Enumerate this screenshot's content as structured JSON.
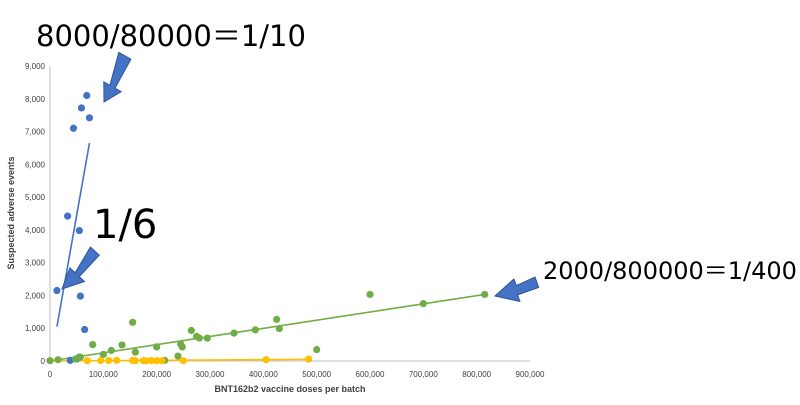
{
  "chart_data": {
    "type": "scatter",
    "xlabel": "BNT162b2 vaccine doses per batch",
    "ylabel": "Suspected adverse events",
    "xlim": [
      0,
      900000
    ],
    "ylim": [
      0,
      9000
    ],
    "x_ticks": [
      "0",
      "100,000",
      "200,000",
      "300,000",
      "400,000",
      "500,000",
      "600,000",
      "700,000",
      "800,000",
      "900,000"
    ],
    "y_ticks": [
      "0",
      "1,000",
      "2,000",
      "3,000",
      "4,000",
      "5,000",
      "6,000",
      "7,000",
      "8,000",
      "9,000"
    ],
    "grid": false,
    "legend": "none",
    "series": [
      {
        "color": "#4472C4",
        "points": [
          [
            13000,
            2150
          ],
          [
            33000,
            4420
          ],
          [
            44000,
            7100
          ],
          [
            55000,
            3980
          ],
          [
            57000,
            1980
          ],
          [
            59000,
            7720
          ],
          [
            65000,
            960
          ],
          [
            69000,
            8100
          ],
          [
            74000,
            7420
          ],
          [
            55000,
            120
          ],
          [
            38000,
            20
          ],
          [
            50000,
            60
          ]
        ],
        "trendline": [
          [
            13000,
            1050
          ],
          [
            74000,
            6650
          ]
        ]
      },
      {
        "color": "#70AD47",
        "points": [
          [
            0,
            10
          ],
          [
            15000,
            40
          ],
          [
            48000,
            60
          ],
          [
            57000,
            120
          ],
          [
            80000,
            500
          ],
          [
            100000,
            200
          ],
          [
            115000,
            320
          ],
          [
            135000,
            490
          ],
          [
            155000,
            1180
          ],
          [
            160000,
            270
          ],
          [
            200000,
            430
          ],
          [
            215000,
            20
          ],
          [
            240000,
            150
          ],
          [
            245000,
            520
          ],
          [
            248000,
            430
          ],
          [
            265000,
            930
          ],
          [
            275000,
            750
          ],
          [
            280000,
            700
          ],
          [
            295000,
            700
          ],
          [
            345000,
            850
          ],
          [
            385000,
            950
          ],
          [
            425000,
            1270
          ],
          [
            430000,
            990
          ],
          [
            500000,
            350
          ],
          [
            600000,
            2030
          ],
          [
            700000,
            1750
          ],
          [
            815000,
            2030
          ]
        ],
        "trendline": [
          [
            0,
            0
          ],
          [
            815000,
            2030
          ]
        ]
      },
      {
        "color": "#FFC000",
        "points": [
          [
            70000,
            10
          ],
          [
            95000,
            15
          ],
          [
            110000,
            15
          ],
          [
            125000,
            20
          ],
          [
            155000,
            15
          ],
          [
            160000,
            10
          ],
          [
            175000,
            10
          ],
          [
            180000,
            5
          ],
          [
            190000,
            15
          ],
          [
            200000,
            10
          ],
          [
            210000,
            5
          ],
          [
            250000,
            10
          ],
          [
            405000,
            40
          ],
          [
            485000,
            60
          ]
        ],
        "trendline": [
          [
            0,
            0
          ],
          [
            490000,
            50
          ]
        ]
      }
    ],
    "annotations": [
      {
        "text": "8000/80000＝1/10"
      },
      {
        "text": "1/6"
      },
      {
        "text": "2000/800000＝1/400"
      }
    ]
  },
  "arrow_color": "#4472C4"
}
